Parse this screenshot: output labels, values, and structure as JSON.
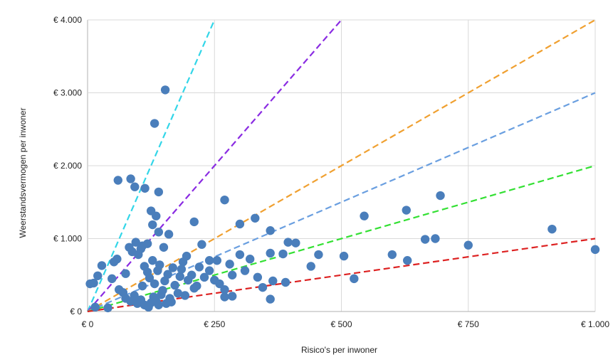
{
  "chart_data": {
    "type": "scatter",
    "title": "",
    "xlabel": "Risico's per inwoner",
    "ylabel": "Weerstandsvermogen per inwoner",
    "xlim": [
      0,
      1000
    ],
    "ylim": [
      0,
      4000
    ],
    "grid": true,
    "x_ticks": [
      0,
      250,
      500,
      750,
      1000
    ],
    "x_tick_labels": [
      "€ 0",
      "€ 250",
      "€ 500",
      "€ 750",
      "€ 1.000"
    ],
    "y_ticks": [
      0,
      1000,
      2000,
      3000,
      4000
    ],
    "y_tick_labels": [
      "€ 0",
      "€ 1.000",
      "€ 2.000",
      "€ 3.000",
      "€ 4.000"
    ],
    "point_color": "#4a7ebb",
    "reference_lines": [
      {
        "slope": 16,
        "color": "#33d6e8"
      },
      {
        "slope": 8,
        "color": "#8a2be2"
      },
      {
        "slope": 4,
        "color": "#f0a030"
      },
      {
        "slope": 3,
        "color": "#6a9fe0"
      },
      {
        "slope": 2,
        "color": "#33e033"
      },
      {
        "slope": 1,
        "color": "#dd2222"
      }
    ],
    "points": [
      [
        5,
        380
      ],
      [
        12,
        390
      ],
      [
        15,
        60
      ],
      [
        20,
        490
      ],
      [
        28,
        630
      ],
      [
        40,
        50
      ],
      [
        52,
        680
      ],
      [
        58,
        720
      ],
      [
        48,
        450
      ],
      [
        62,
        300
      ],
      [
        70,
        260
      ],
      [
        75,
        520
      ],
      [
        82,
        880
      ],
      [
        88,
        820
      ],
      [
        95,
        950
      ],
      [
        100,
        780
      ],
      [
        105,
        860
      ],
      [
        108,
        350
      ],
      [
        112,
        620
      ],
      [
        118,
        540
      ],
      [
        122,
        460
      ],
      [
        128,
        700
      ],
      [
        132,
        380
      ],
      [
        138,
        560
      ],
      [
        142,
        640
      ],
      [
        148,
        290
      ],
      [
        152,
        420
      ],
      [
        158,
        510
      ],
      [
        162,
        180
      ],
      [
        168,
        600
      ],
      [
        172,
        360
      ],
      [
        178,
        250
      ],
      [
        182,
        480
      ],
      [
        188,
        680
      ],
      [
        192,
        220
      ],
      [
        198,
        430
      ],
      [
        75,
        180
      ],
      [
        85,
        140
      ],
      [
        92,
        220
      ],
      [
        98,
        110
      ],
      [
        105,
        160
      ],
      [
        112,
        90
      ],
      [
        120,
        60
      ],
      [
        125,
        120
      ],
      [
        130,
        200
      ],
      [
        135,
        140
      ],
      [
        140,
        90
      ],
      [
        145,
        230
      ],
      [
        155,
        110
      ],
      [
        165,
        130
      ],
      [
        60,
        1800
      ],
      [
        85,
        1820
      ],
      [
        93,
        1710
      ],
      [
        113,
        1690
      ],
      [
        140,
        1640
      ],
      [
        125,
        1380
      ],
      [
        135,
        1310
      ],
      [
        140,
        1090
      ],
      [
        150,
        880
      ],
      [
        160,
        1060
      ],
      [
        128,
        1190
      ],
      [
        118,
        930
      ],
      [
        108,
        900
      ],
      [
        153,
        3040
      ],
      [
        132,
        2580
      ],
      [
        270,
        1530
      ],
      [
        210,
        1230
      ],
      [
        225,
        920
      ],
      [
        300,
        1200
      ],
      [
        330,
        1280
      ],
      [
        360,
        1110
      ],
      [
        395,
        950
      ],
      [
        410,
        940
      ],
      [
        360,
        800
      ],
      [
        385,
        790
      ],
      [
        455,
        780
      ],
      [
        440,
        620
      ],
      [
        300,
        780
      ],
      [
        320,
        720
      ],
      [
        280,
        650
      ],
      [
        255,
        700
      ],
      [
        240,
        560
      ],
      [
        230,
        470
      ],
      [
        260,
        380
      ],
      [
        270,
        300
      ],
      [
        285,
        500
      ],
      [
        310,
        560
      ],
      [
        335,
        470
      ],
      [
        345,
        330
      ],
      [
        365,
        420
      ],
      [
        390,
        400
      ],
      [
        360,
        170
      ],
      [
        270,
        200
      ],
      [
        285,
        210
      ],
      [
        250,
        430
      ],
      [
        215,
        350
      ],
      [
        205,
        500
      ],
      [
        220,
        610
      ],
      [
        240,
        700
      ],
      [
        195,
        760
      ],
      [
        185,
        580
      ],
      [
        210,
        320
      ],
      [
        505,
        760
      ],
      [
        545,
        1310
      ],
      [
        525,
        450
      ],
      [
        600,
        780
      ],
      [
        628,
        1390
      ],
      [
        665,
        990
      ],
      [
        630,
        700
      ],
      [
        685,
        1000
      ],
      [
        695,
        1590
      ],
      [
        750,
        910
      ],
      [
        915,
        1130
      ],
      [
        1000,
        850
      ]
    ]
  }
}
